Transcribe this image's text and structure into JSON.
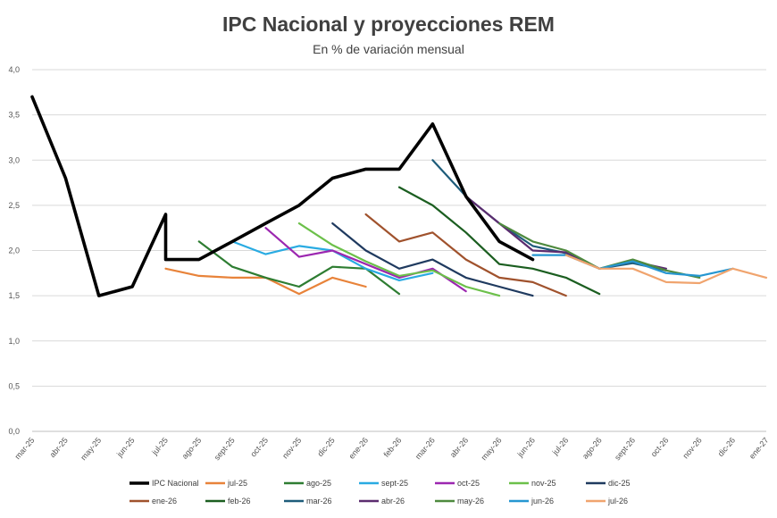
{
  "chart_data": {
    "type": "line",
    "title": "IPC Nacional y proyecciones REM",
    "subtitle": "En % de variación mensual",
    "xlabel": "",
    "ylabel": "",
    "ylim": [
      0,
      4
    ],
    "yticks": [
      "0,0",
      "0,5",
      "1,0",
      "1,5",
      "2,0",
      "2,5",
      "3,0",
      "3,5",
      "4,0"
    ],
    "categories": [
      "mar-25",
      "abr-25",
      "may-25",
      "jun-25",
      "jul-25",
      "ago-25",
      "sept-25",
      "oct-25",
      "nov-25",
      "dic-25",
      "ene-26",
      "feb-26",
      "mar-26",
      "abr-26",
      "may-26",
      "jun-26",
      "jul-26",
      "ago-26",
      "sept-26",
      "oct-26",
      "nov-26",
      "dic-26",
      "ene-27"
    ],
    "grid": true,
    "legend_position": "bottom",
    "series": [
      {
        "name": "IPC Nacional",
        "color": "#000000",
        "bold": true,
        "values": [
          [
            0,
            3.7
          ],
          [
            1,
            2.8
          ],
          [
            2,
            1.5
          ],
          [
            3,
            1.6
          ],
          [
            4,
            2.4
          ],
          [
            4,
            1.9
          ],
          [
            5,
            1.9
          ],
          [
            6,
            2.1
          ],
          [
            7,
            2.3
          ],
          [
            8,
            2.5
          ],
          [
            9,
            2.8
          ],
          [
            10,
            2.9
          ],
          [
            11,
            2.9
          ],
          [
            12,
            3.4
          ],
          [
            13,
            2.6
          ],
          [
            14,
            2.1
          ],
          [
            15,
            1.9
          ]
        ]
      },
      {
        "name": "jul-25",
        "color": "#E8833A",
        "values": [
          [
            4,
            1.8
          ],
          [
            5,
            1.72
          ],
          [
            6,
            1.7
          ],
          [
            7,
            1.7
          ],
          [
            8,
            1.52
          ],
          [
            9,
            1.7
          ],
          [
            10,
            1.6
          ]
        ]
      },
      {
        "name": "ago-25",
        "color": "#2E7D32",
        "values": [
          [
            5,
            2.1
          ],
          [
            6,
            1.82
          ],
          [
            7,
            1.7
          ],
          [
            8,
            1.6
          ],
          [
            9,
            1.82
          ],
          [
            10,
            1.8
          ],
          [
            11,
            1.52
          ]
        ]
      },
      {
        "name": "sept-25",
        "color": "#29ABE2",
        "values": [
          [
            6,
            2.1
          ],
          [
            7,
            1.96
          ],
          [
            8,
            2.05
          ],
          [
            9,
            2.0
          ],
          [
            10,
            1.8
          ],
          [
            11,
            1.67
          ],
          [
            12,
            1.75
          ]
        ]
      },
      {
        "name": "oct-25",
        "color": "#9C27B0",
        "values": [
          [
            7,
            2.25
          ],
          [
            8,
            1.93
          ],
          [
            9,
            2.0
          ],
          [
            10,
            1.85
          ],
          [
            11,
            1.7
          ],
          [
            12,
            1.8
          ],
          [
            13,
            1.55
          ]
        ]
      },
      {
        "name": "nov-25",
        "color": "#6CC04A",
        "values": [
          [
            8,
            2.3
          ],
          [
            9,
            2.06
          ],
          [
            10,
            1.88
          ],
          [
            11,
            1.72
          ],
          [
            12,
            1.78
          ],
          [
            13,
            1.6
          ],
          [
            14,
            1.5
          ]
        ]
      },
      {
        "name": "dic-25",
        "color": "#1F3A5F",
        "values": [
          [
            9,
            2.3
          ],
          [
            10,
            2.0
          ],
          [
            11,
            1.8
          ],
          [
            12,
            1.9
          ],
          [
            13,
            1.7
          ],
          [
            14,
            1.6
          ],
          [
            15,
            1.5
          ]
        ]
      },
      {
        "name": "ene-26",
        "color": "#A0522D",
        "values": [
          [
            10,
            2.4
          ],
          [
            11,
            2.1
          ],
          [
            12,
            2.2
          ],
          [
            13,
            1.9
          ],
          [
            14,
            1.7
          ],
          [
            15,
            1.65
          ],
          [
            16,
            1.5
          ]
        ]
      },
      {
        "name": "feb-26",
        "color": "#1B5E20",
        "values": [
          [
            11,
            2.7
          ],
          [
            12,
            2.5
          ],
          [
            13,
            2.2
          ],
          [
            14,
            1.85
          ],
          [
            15,
            1.8
          ],
          [
            16,
            1.7
          ],
          [
            17,
            1.52
          ]
        ]
      },
      {
        "name": "mar-26",
        "color": "#1E5C7A",
        "values": [
          [
            12,
            3.0
          ],
          [
            13,
            2.6
          ],
          [
            14,
            2.3
          ],
          [
            15,
            2.05
          ],
          [
            16,
            1.97
          ],
          [
            17,
            1.8
          ],
          [
            18,
            1.86
          ],
          [
            19,
            1.78
          ]
        ]
      },
      {
        "name": "abr-26",
        "color": "#5B2C6F",
        "values": [
          [
            13,
            2.6
          ],
          [
            14,
            2.3
          ],
          [
            15,
            2.0
          ],
          [
            16,
            1.98
          ],
          [
            17,
            1.8
          ],
          [
            18,
            1.88
          ],
          [
            19,
            1.8
          ]
        ]
      },
      {
        "name": "may-26",
        "color": "#4E8A3E",
        "values": [
          [
            14,
            2.3
          ],
          [
            15,
            2.1
          ],
          [
            16,
            2.0
          ],
          [
            17,
            1.8
          ],
          [
            18,
            1.9
          ],
          [
            19,
            1.78
          ],
          [
            20,
            1.7
          ]
        ]
      },
      {
        "name": "jun-26",
        "color": "#2596D1",
        "values": [
          [
            15,
            1.95
          ],
          [
            16,
            1.95
          ],
          [
            17,
            1.8
          ],
          [
            18,
            1.88
          ],
          [
            19,
            1.75
          ],
          [
            20,
            1.72
          ],
          [
            21,
            1.8
          ]
        ]
      },
      {
        "name": "jul-26",
        "color": "#F0A46E",
        "values": [
          [
            16,
            1.95
          ],
          [
            17,
            1.8
          ],
          [
            18,
            1.8
          ],
          [
            19,
            1.65
          ],
          [
            20,
            1.64
          ],
          [
            21,
            1.8
          ],
          [
            22,
            1.7
          ]
        ]
      }
    ]
  }
}
